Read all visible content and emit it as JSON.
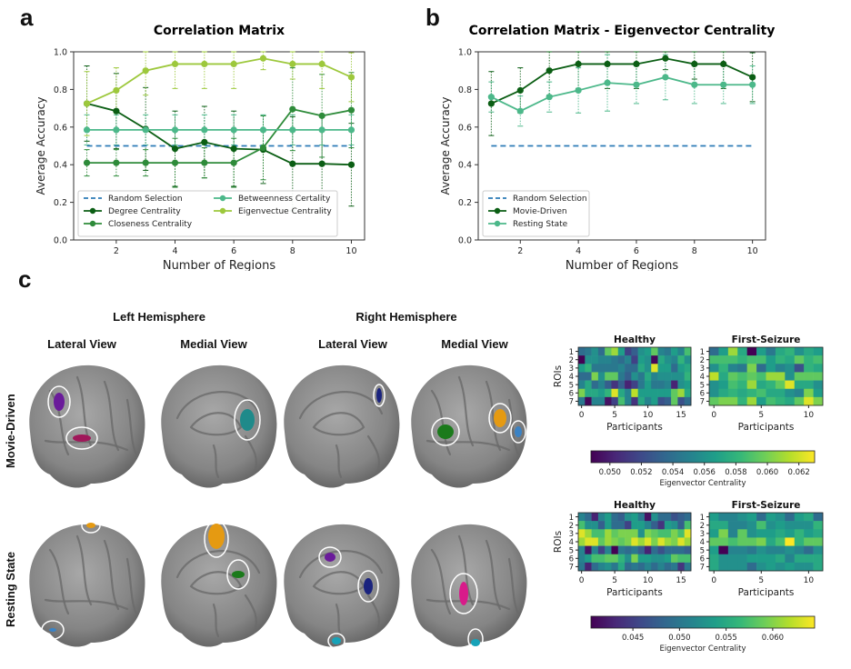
{
  "panels": {
    "a": {
      "letter": "a"
    },
    "b": {
      "letter": "b"
    },
    "c": {
      "letter": "c"
    }
  },
  "chart_data": [
    {
      "id": "a",
      "type": "line",
      "title": "Correlation Matrix",
      "xlabel": "Number of Regions",
      "ylabel": "Average Accuracy",
      "x": [
        1,
        2,
        3,
        4,
        5,
        6,
        7,
        8,
        9,
        10
      ],
      "xticks": [
        2,
        4,
        6,
        8,
        10
      ],
      "yticks": [
        "0.0",
        "0.2",
        "0.4",
        "0.6",
        "0.8",
        "1.0"
      ],
      "ylim": [
        0,
        1.0
      ],
      "xlim": [
        0.55,
        10.45
      ],
      "legend_position": "lower-left",
      "legend_columns": 2,
      "series": [
        {
          "name": "Random Selection",
          "style": "dashed",
          "color": "#2c7bb6",
          "values": [
            0.5,
            0.5,
            0.5,
            0.5,
            0.5,
            0.5,
            0.5,
            0.5,
            0.5,
            0.5
          ]
        },
        {
          "name": "Degree Centrality",
          "color": "#0b5e14",
          "values": [
            0.725,
            0.685,
            0.59,
            0.485,
            0.52,
            0.485,
            0.48,
            0.405,
            0.405,
            0.4
          ],
          "err": [
            0.2,
            0.2,
            0.22,
            0.2,
            0.19,
            0.2,
            0.18,
            0.25,
            0.25,
            0.22
          ]
        },
        {
          "name": "Closeness Centrality",
          "color": "#2e8b3a",
          "values": [
            0.41,
            0.41,
            0.41,
            0.41,
            0.41,
            0.41,
            0.49,
            0.695,
            0.66,
            0.69
          ],
          "err": [
            0.07,
            0.07,
            0.07,
            0.13,
            0.08,
            0.13,
            0.17,
            0.22,
            0.22,
            0.2
          ]
        },
        {
          "name": "Betweenness Certality",
          "color": "#4cb88a",
          "values": [
            0.585,
            0.585,
            0.585,
            0.585,
            0.585,
            0.585,
            0.585,
            0.585,
            0.585,
            0.585
          ],
          "err": [
            0.08,
            0.08,
            0.08,
            0.08,
            0.08,
            0.08,
            0.08,
            0.08,
            0.08,
            0.08
          ]
        },
        {
          "name": "Eigenvectue Centrality",
          "color": "#9dc83c",
          "values": [
            0.725,
            0.795,
            0.9,
            0.935,
            0.935,
            0.935,
            0.965,
            0.935,
            0.935,
            0.865
          ],
          "err": [
            0.17,
            0.12,
            0.13,
            0.13,
            0.13,
            0.13,
            0.06,
            0.08,
            0.13,
            0.13
          ]
        }
      ]
    },
    {
      "id": "b",
      "type": "line",
      "title": "Correlation Matrix - Eigenvector Centrality",
      "xlabel": "Number of Regions",
      "ylabel": "Average Accuracy",
      "x": [
        1,
        2,
        3,
        4,
        5,
        6,
        7,
        8,
        9,
        10
      ],
      "xticks": [
        2,
        4,
        6,
        8,
        10
      ],
      "yticks": [
        "0.0",
        "0.2",
        "0.4",
        "0.6",
        "0.8",
        "1.0"
      ],
      "ylim": [
        0,
        1.0
      ],
      "xlim": [
        0.55,
        10.45
      ],
      "legend_position": "lower-left",
      "legend_columns": 1,
      "series": [
        {
          "name": "Random Selection",
          "style": "dashed",
          "color": "#2c7bb6",
          "values": [
            0.5,
            0.5,
            0.5,
            0.5,
            0.5,
            0.5,
            0.5,
            0.5,
            0.5,
            0.5
          ]
        },
        {
          "name": "Movie-Driven",
          "color": "#0b5e14",
          "values": [
            0.725,
            0.795,
            0.9,
            0.935,
            0.935,
            0.935,
            0.965,
            0.935,
            0.935,
            0.865
          ],
          "err": [
            0.17,
            0.12,
            0.13,
            0.13,
            0.13,
            0.13,
            0.06,
            0.08,
            0.13,
            0.13
          ]
        },
        {
          "name": "Resting State",
          "color": "#4cb88a",
          "values": [
            0.76,
            0.685,
            0.76,
            0.795,
            0.835,
            0.825,
            0.865,
            0.825,
            0.825,
            0.825
          ],
          "err": [
            0.08,
            0.08,
            0.08,
            0.12,
            0.15,
            0.1,
            0.12,
            0.1,
            0.1,
            0.1
          ]
        }
      ]
    },
    {
      "id": "c-heatmaps",
      "type": "heatmap",
      "colormap": "viridis",
      "ylabel": "ROIs",
      "xlabel": "Participants",
      "rows": [
        {
          "name": "Movie-Driven",
          "colorbar": {
            "label": "Eigenvector Centrality",
            "min": 0.0488,
            "max": 0.063,
            "ticks": [
              "0.050",
              "0.052",
              "0.054",
              "0.056",
              "0.058",
              "0.060",
              "0.062"
            ],
            "tick_values": [
              0.05,
              0.052,
              0.054,
              0.056,
              0.058,
              0.06,
              0.062
            ]
          },
          "maps": [
            {
              "title": "Healthy",
              "xticks": [
                "0",
                "5",
                "10",
                "15"
              ],
              "xtick_values": [
                0,
                5,
                10,
                15
              ],
              "yticks": [
                "1",
                "2",
                "3",
                "4",
                "5",
                "6",
                "7"
              ],
              "values": [
                [
                  0.35,
                  0.4,
                  0.5,
                  0.35,
                  0.75,
                  0.85,
                  0.55,
                  0.2,
                  0.3,
                  0.5,
                  0.55,
                  0.75,
                  0.45,
                  0.4,
                  0.55,
                  0.45,
                  0.7
                ],
                [
                  0.0,
                  0.5,
                  0.5,
                  0.45,
                  0.45,
                  0.4,
                  0.35,
                  0.45,
                  0.2,
                  0.55,
                  0.5,
                  0.02,
                  0.6,
                  0.5,
                  0.45,
                  0.65,
                  0.5
                ],
                [
                  0.55,
                  0.65,
                  0.4,
                  0.4,
                  0.4,
                  0.4,
                  0.45,
                  0.35,
                  0.35,
                  0.6,
                  0.5,
                  0.95,
                  0.55,
                  0.55,
                  0.35,
                  0.55,
                  0.6
                ],
                [
                  0.35,
                  0.35,
                  0.8,
                  0.5,
                  0.75,
                  0.75,
                  0.4,
                  0.3,
                  0.5,
                  0.4,
                  0.6,
                  0.45,
                  0.5,
                  0.5,
                  0.5,
                  0.5,
                  0.65
                ],
                [
                  0.45,
                  0.6,
                  0.35,
                  0.45,
                  0.3,
                  0.15,
                  0.3,
                  0.1,
                  0.2,
                  0.4,
                  0.55,
                  0.4,
                  0.4,
                  0.45,
                  0.1,
                  0.5,
                  0.55
                ],
                [
                  0.8,
                  0.6,
                  0.6,
                  0.55,
                  0.65,
                  0.95,
                  0.6,
                  0.45,
                  0.9,
                  0.55,
                  0.55,
                  0.55,
                  0.55,
                  0.55,
                  0.75,
                  0.85,
                  0.6
                ],
                [
                  0.4,
                  0.02,
                  0.45,
                  0.45,
                  0.05,
                  0.2,
                  0.7,
                  0.45,
                  0.15,
                  0.6,
                  0.45,
                  0.55,
                  0.25,
                  0.3,
                  0.75,
                  0.25,
                  0.35
                ]
              ]
            },
            {
              "title": "First-Seizure",
              "xticks": [
                "0",
                "5",
                "10"
              ],
              "xtick_values": [
                0,
                5,
                10
              ],
              "yticks": [
                "1",
                "2",
                "3",
                "4",
                "5",
                "6",
                "7"
              ],
              "values": [
                [
                  0.35,
                  0.55,
                  0.85,
                  0.6,
                  0.0,
                  0.55,
                  0.4,
                  0.6,
                  0.65,
                  0.5,
                  0.6,
                  0.55
                ],
                [
                  0.7,
                  0.7,
                  0.7,
                  0.65,
                  0.7,
                  0.7,
                  0.55,
                  0.65,
                  0.6,
                  0.75,
                  0.65,
                  0.7
                ],
                [
                  0.5,
                  0.65,
                  0.45,
                  0.4,
                  0.8,
                  0.35,
                  0.55,
                  0.45,
                  0.5,
                  0.25,
                  0.65,
                  0.6
                ],
                [
                  0.9,
                  0.6,
                  0.75,
                  0.7,
                  0.75,
                  0.7,
                  0.85,
                  0.85,
                  0.5,
                  0.75,
                  0.75,
                  0.75
                ],
                [
                  0.5,
                  0.55,
                  0.7,
                  0.65,
                  0.85,
                  0.6,
                  0.65,
                  0.75,
                  0.95,
                  0.6,
                  0.6,
                  0.5
                ],
                [
                  0.5,
                  0.6,
                  0.65,
                  0.6,
                  0.65,
                  0.7,
                  0.6,
                  0.6,
                  0.5,
                  0.45,
                  0.8,
                  0.55
                ],
                [
                  0.75,
                  0.8,
                  0.8,
                  0.65,
                  0.85,
                  0.55,
                  0.7,
                  0.65,
                  0.6,
                  0.75,
                  0.95,
                  0.8
                ]
              ]
            }
          ]
        },
        {
          "name": "Resting State",
          "colorbar": {
            "label": "Eigenvector Centrality",
            "min": 0.0405,
            "max": 0.0645,
            "ticks": [
              "0.045",
              "0.050",
              "0.055",
              "0.060"
            ],
            "tick_values": [
              0.045,
              0.05,
              0.055,
              0.06
            ]
          },
          "maps": [
            {
              "title": "Healthy",
              "xticks": [
                "0",
                "5",
                "10",
                "15"
              ],
              "xtick_values": [
                0,
                5,
                10,
                15
              ],
              "yticks": [
                "1",
                "2",
                "3",
                "4",
                "5",
                "6",
                "7"
              ],
              "values": [
                [
                  0.45,
                  0.35,
                  0.1,
                  0.45,
                  0.55,
                  0.35,
                  0.3,
                  0.5,
                  0.55,
                  0.4,
                  0.05,
                  0.5,
                  0.35,
                  0.35,
                  0.25,
                  0.3,
                  0.35
                ],
                [
                  0.7,
                  0.5,
                  0.5,
                  0.3,
                  0.55,
                  0.35,
                  0.35,
                  0.2,
                  0.55,
                  0.55,
                  0.45,
                  0.3,
                  0.15,
                  0.55,
                  0.5,
                  0.3,
                  0.7
                ],
                [
                  0.95,
                  0.85,
                  0.7,
                  0.7,
                  0.85,
                  0.75,
                  0.8,
                  0.8,
                  0.8,
                  0.5,
                  0.8,
                  0.75,
                  0.7,
                  0.7,
                  0.8,
                  0.7,
                  0.95
                ],
                [
                  0.85,
                  0.95,
                  0.95,
                  0.75,
                  0.85,
                  0.8,
                  0.75,
                  0.8,
                  0.95,
                  0.85,
                  0.95,
                  0.8,
                  0.95,
                  0.85,
                  0.8,
                  0.95,
                  0.85
                ],
                [
                  0.45,
                  0.05,
                  0.45,
                  0.2,
                  0.45,
                  0.0,
                  0.4,
                  0.35,
                  0.4,
                  0.3,
                  0.1,
                  0.35,
                  0.25,
                  0.35,
                  0.35,
                  0.35,
                  0.3
                ],
                [
                  0.45,
                  0.55,
                  0.7,
                  0.7,
                  0.75,
                  0.75,
                  0.65,
                  0.5,
                  0.8,
                  0.55,
                  0.55,
                  0.5,
                  0.5,
                  0.55,
                  0.75,
                  0.7,
                  0.7
                ],
                [
                  0.4,
                  0.1,
                  0.35,
                  0.45,
                  0.5,
                  0.4,
                  0.6,
                  0.35,
                  0.4,
                  0.35,
                  0.45,
                  0.35,
                  0.45,
                  0.35,
                  0.4,
                  0.15,
                  0.4
                ]
              ]
            },
            {
              "title": "First-Seizure",
              "xticks": [
                "0",
                "5",
                "10"
              ],
              "xtick_values": [
                0,
                5,
                10
              ],
              "yticks": [
                "1",
                "2",
                "3",
                "4",
                "5",
                "6",
                "7"
              ],
              "values": [
                [
                  0.55,
                  0.45,
                  0.45,
                  0.5,
                  0.55,
                  0.35,
                  0.55,
                  0.5,
                  0.35,
                  0.55,
                  0.6,
                  0.35
                ],
                [
                  0.6,
                  0.6,
                  0.45,
                  0.45,
                  0.5,
                  0.7,
                  0.5,
                  0.55,
                  0.5,
                  0.5,
                  0.5,
                  0.65
                ],
                [
                  0.55,
                  0.8,
                  0.45,
                  0.75,
                  0.5,
                  0.55,
                  0.55,
                  0.6,
                  0.55,
                  0.65,
                  0.55,
                  0.6
                ],
                [
                  0.75,
                  0.75,
                  0.7,
                  0.75,
                  0.75,
                  0.8,
                  0.6,
                  0.7,
                  1.0,
                  0.65,
                  0.75,
                  0.75
                ],
                [
                  0.55,
                  0.0,
                  0.45,
                  0.45,
                  0.4,
                  0.5,
                  0.45,
                  0.45,
                  0.5,
                  0.45,
                  0.35,
                  0.5
                ],
                [
                  0.6,
                  0.5,
                  0.5,
                  0.5,
                  0.55,
                  0.55,
                  0.55,
                  0.6,
                  0.45,
                  0.6,
                  0.6,
                  0.6
                ],
                [
                  0.6,
                  0.5,
                  0.5,
                  0.5,
                  0.35,
                  0.5,
                  0.55,
                  0.5,
                  0.55,
                  0.5,
                  0.5,
                  0.6
                ]
              ]
            }
          ]
        }
      ]
    }
  ],
  "brain_panel": {
    "hemispheres": [
      "Left Hemisphere",
      "Right Hemisphere"
    ],
    "views": [
      "Lateral View",
      "Medial View",
      "Lateral View",
      "Medial View"
    ],
    "conditions": [
      "Movie-Driven",
      "Resting State"
    ],
    "roi_colors": {
      "purple": "#6a1b9a",
      "magenta": "#a0185a",
      "teal": "#1f8a8a",
      "navy": "#1a237e",
      "green": "#1b7a1b",
      "orange": "#e59a12",
      "blue": "#3b82c4",
      "pink": "#d81b8a",
      "cyan": "#17a2b8"
    }
  }
}
